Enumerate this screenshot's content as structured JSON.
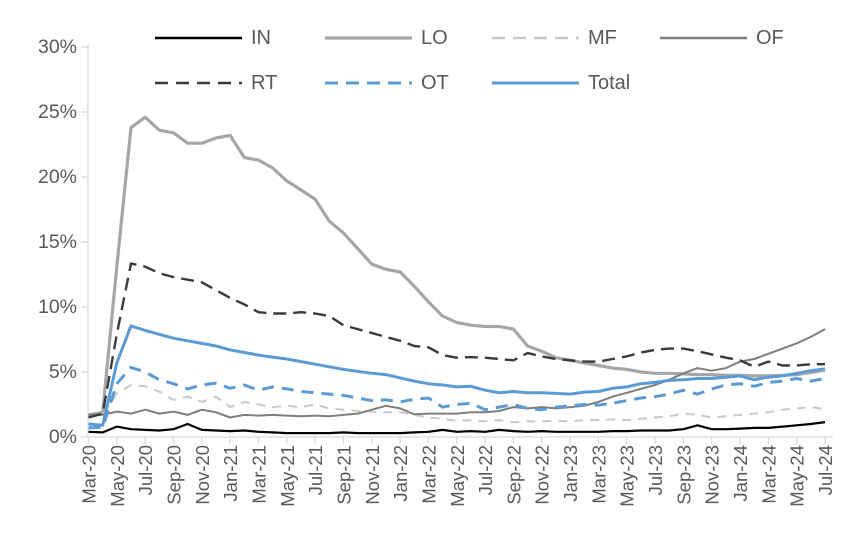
{
  "chart_data": {
    "type": "line",
    "title": "",
    "xlabel": "",
    "ylabel": "",
    "grid": false,
    "legend_position": "top",
    "legend_rows": [
      [
        "IN",
        "LO",
        "MF",
        "OF"
      ],
      [
        "RT",
        "OT",
        "Total"
      ]
    ],
    "axis_color": "#d9d9d9",
    "label_color": "#595959",
    "y_axis": {
      "min": 0,
      "max": 30,
      "tick_values": [
        0,
        5,
        10,
        15,
        20,
        25,
        30
      ],
      "tick_labels": [
        "0%",
        "5%",
        "10%",
        "15%",
        "20%",
        "25%",
        "30%"
      ]
    },
    "x_axis": {
      "label_every": 2,
      "categories": [
        "Mar-20",
        "Apr-20",
        "May-20",
        "Jun-20",
        "Jul-20",
        "Aug-20",
        "Sep-20",
        "Oct-20",
        "Nov-20",
        "Dec-20",
        "Jan-21",
        "Feb-21",
        "Mar-21",
        "Apr-21",
        "May-21",
        "Jun-21",
        "Jul-21",
        "Aug-21",
        "Sep-21",
        "Oct-21",
        "Nov-21",
        "Dec-21",
        "Jan-22",
        "Feb-22",
        "Mar-22",
        "Apr-22",
        "May-22",
        "Jun-22",
        "Jul-22",
        "Aug-22",
        "Sep-22",
        "Oct-22",
        "Nov-22",
        "Dec-22",
        "Jan-23",
        "Feb-23",
        "Mar-23",
        "Apr-23",
        "May-23",
        "Jun-23",
        "Jul-23",
        "Aug-23",
        "Sep-23",
        "Oct-23",
        "Nov-23",
        "Dec-23",
        "Jan-24",
        "Feb-24",
        "Mar-24",
        "Apr-24",
        "May-24",
        "Jun-24",
        "Jul-24"
      ]
    },
    "series": [
      {
        "name": "IN",
        "color": "#000000",
        "style": "solid",
        "width": 2.2,
        "values": [
          0.4,
          0.35,
          0.8,
          0.6,
          0.55,
          0.5,
          0.6,
          1.0,
          0.55,
          0.5,
          0.45,
          0.5,
          0.4,
          0.35,
          0.3,
          0.3,
          0.3,
          0.3,
          0.35,
          0.3,
          0.3,
          0.3,
          0.3,
          0.35,
          0.4,
          0.55,
          0.4,
          0.45,
          0.4,
          0.55,
          0.45,
          0.4,
          0.45,
          0.4,
          0.4,
          0.4,
          0.4,
          0.45,
          0.45,
          0.5,
          0.5,
          0.5,
          0.6,
          0.9,
          0.6,
          0.6,
          0.65,
          0.7,
          0.7,
          0.8,
          0.9,
          1.0,
          1.15
        ]
      },
      {
        "name": "LO",
        "color": "#a6a6a6",
        "style": "solid",
        "width": 3.2,
        "values": [
          1.7,
          1.9,
          13.1,
          23.8,
          24.6,
          23.6,
          23.4,
          22.6,
          22.6,
          23.0,
          23.2,
          21.5,
          21.3,
          20.7,
          19.7,
          19.0,
          18.3,
          16.6,
          15.7,
          14.5,
          13.3,
          12.9,
          12.7,
          11.6,
          10.4,
          9.3,
          8.8,
          8.6,
          8.5,
          8.5,
          8.3,
          7.0,
          6.6,
          6.1,
          5.9,
          5.7,
          5.5,
          5.3,
          5.2,
          5.0,
          4.9,
          4.9,
          4.85,
          4.8,
          4.8,
          4.75,
          4.75,
          4.7,
          4.7,
          4.75,
          4.8,
          4.95,
          5.15
        ]
      },
      {
        "name": "MF",
        "color": "#c9c9c9",
        "style": "dashed",
        "width": 2.0,
        "values": [
          1.6,
          1.7,
          3.35,
          4.0,
          3.9,
          3.5,
          2.85,
          3.1,
          2.7,
          3.1,
          2.3,
          2.7,
          2.5,
          2.3,
          2.4,
          2.3,
          2.5,
          2.2,
          2.1,
          2.0,
          1.95,
          1.9,
          1.9,
          1.7,
          1.5,
          1.4,
          1.25,
          1.3,
          1.2,
          1.3,
          1.15,
          1.2,
          1.2,
          1.25,
          1.2,
          1.3,
          1.3,
          1.35,
          1.3,
          1.4,
          1.5,
          1.6,
          1.8,
          1.7,
          1.5,
          1.6,
          1.7,
          1.8,
          1.9,
          2.1,
          2.2,
          2.3,
          2.15
        ]
      },
      {
        "name": "OF",
        "color": "#7f7f7f",
        "style": "solid",
        "width": 2.0,
        "values": [
          1.7,
          1.7,
          1.95,
          1.8,
          2.1,
          1.8,
          1.95,
          1.7,
          2.1,
          1.9,
          1.5,
          1.7,
          1.65,
          1.7,
          1.65,
          1.6,
          1.65,
          1.6,
          1.7,
          1.8,
          2.1,
          2.4,
          2.2,
          1.75,
          1.8,
          1.8,
          1.8,
          1.9,
          1.9,
          2.0,
          2.3,
          2.2,
          2.3,
          2.2,
          2.3,
          2.4,
          2.7,
          3.1,
          3.4,
          3.7,
          4.0,
          4.4,
          4.9,
          5.3,
          5.1,
          5.3,
          5.8,
          6.0,
          6.4,
          6.8,
          7.2,
          7.7,
          8.3
        ]
      },
      {
        "name": "RT",
        "color": "#3a3a3a",
        "style": "dashed",
        "width": 2.4,
        "values": [
          1.5,
          1.8,
          7.9,
          13.35,
          13.1,
          12.6,
          12.3,
          12.1,
          11.9,
          11.3,
          10.7,
          10.2,
          9.6,
          9.5,
          9.5,
          9.6,
          9.5,
          9.3,
          8.6,
          8.3,
          8.0,
          7.7,
          7.4,
          7.0,
          6.9,
          6.3,
          6.1,
          6.15,
          6.1,
          6.0,
          5.9,
          6.45,
          6.2,
          6.0,
          5.9,
          5.8,
          5.8,
          6.0,
          6.2,
          6.5,
          6.7,
          6.8,
          6.8,
          6.6,
          6.35,
          6.1,
          5.9,
          5.4,
          5.8,
          5.5,
          5.5,
          5.6,
          5.6
        ]
      },
      {
        "name": "OT",
        "color": "#5b9bd5",
        "style": "dashed",
        "width": 3.0,
        "values": [
          0.7,
          0.75,
          4.1,
          5.35,
          5.0,
          4.4,
          4.1,
          3.7,
          4.0,
          4.15,
          3.75,
          4.0,
          3.6,
          3.85,
          3.7,
          3.5,
          3.4,
          3.3,
          3.2,
          3.0,
          2.8,
          2.85,
          2.7,
          2.9,
          3.0,
          2.3,
          2.5,
          2.6,
          2.1,
          2.3,
          2.5,
          2.2,
          2.1,
          2.3,
          2.4,
          2.5,
          2.45,
          2.6,
          2.8,
          3.0,
          3.1,
          3.3,
          3.6,
          3.3,
          3.7,
          4.0,
          4.1,
          3.9,
          4.2,
          4.3,
          4.5,
          4.3,
          4.5
        ]
      },
      {
        "name": "Total",
        "color": "#5b9bd5",
        "style": "solid",
        "width": 3.0,
        "values": [
          1.0,
          0.9,
          5.7,
          8.55,
          8.2,
          7.9,
          7.6,
          7.4,
          7.2,
          7.0,
          6.7,
          6.5,
          6.3,
          6.15,
          6.0,
          5.8,
          5.6,
          5.4,
          5.2,
          5.05,
          4.9,
          4.8,
          4.55,
          4.3,
          4.1,
          4.0,
          3.85,
          3.9,
          3.6,
          3.4,
          3.5,
          3.4,
          3.4,
          3.35,
          3.3,
          3.45,
          3.5,
          3.75,
          3.85,
          4.1,
          4.2,
          4.35,
          4.4,
          4.5,
          4.5,
          4.6,
          4.7,
          4.4,
          4.6,
          4.7,
          4.9,
          5.1,
          5.25
        ]
      }
    ]
  }
}
